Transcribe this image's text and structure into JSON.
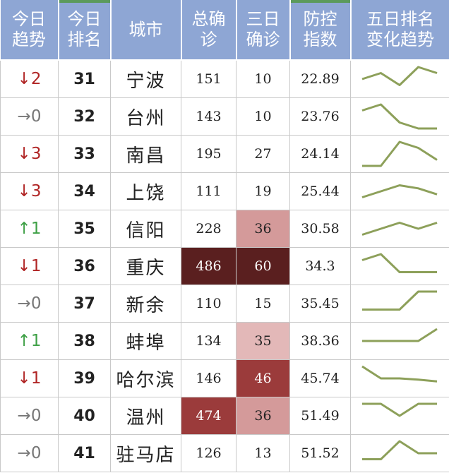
{
  "headers": {
    "trend": [
      "今日",
      "趋势"
    ],
    "rank": [
      "今日",
      "排名"
    ],
    "city": [
      "城市"
    ],
    "total": [
      "总确",
      "诊"
    ],
    "three_day": [
      "三日",
      "确诊"
    ],
    "index": [
      "防控",
      "指数"
    ],
    "sparkline": [
      "五日排名",
      "变化趋势"
    ]
  },
  "colors": {
    "header_bg": "#8ea6d4",
    "trend_down": "#b02525",
    "trend_up": "#3ea046",
    "trend_flat": "#777777",
    "sparkline": "#8da05a"
  },
  "rows": [
    {
      "trend_arrow": "↓",
      "trend_dir": "down",
      "trend_num": "2",
      "rank": "31",
      "city": "宁波",
      "total": "151",
      "three_day": "10",
      "three_day_level": "",
      "total_level": "",
      "index": "22.89",
      "spark": [
        3,
        2,
        4,
        1,
        2
      ]
    },
    {
      "trend_arrow": "→",
      "trend_dir": "flat",
      "trend_num": "0",
      "rank": "32",
      "city": "台州",
      "total": "143",
      "three_day": "10",
      "three_day_level": "",
      "total_level": "",
      "index": "23.76",
      "spark": [
        2,
        1,
        4,
        5,
        5
      ]
    },
    {
      "trend_arrow": "↓",
      "trend_dir": "down",
      "trend_num": "3",
      "rank": "33",
      "city": "南昌",
      "total": "195",
      "three_day": "27",
      "three_day_level": "",
      "total_level": "",
      "index": "24.14",
      "spark": [
        5,
        5,
        1,
        2,
        4
      ]
    },
    {
      "trend_arrow": "↓",
      "trend_dir": "down",
      "trend_num": "3",
      "rank": "34",
      "city": "上饶",
      "total": "111",
      "three_day": "19",
      "three_day_level": "",
      "total_level": "",
      "index": "25.44",
      "spark": [
        4,
        3,
        2,
        2.5,
        3.5
      ]
    },
    {
      "trend_arrow": "↑",
      "trend_dir": "up",
      "trend_num": "1",
      "rank": "35",
      "city": "信阳",
      "total": "228",
      "three_day": "36",
      "three_day_level": "light",
      "total_level": "",
      "index": "30.58",
      "spark": [
        4,
        3,
        2,
        3,
        2
      ]
    },
    {
      "trend_arrow": "↓",
      "trend_dir": "down",
      "trend_num": "1",
      "rank": "36",
      "city": "重庆",
      "total": "486",
      "three_day": "60",
      "three_day_level": "dark",
      "total_level": "dark",
      "index": "34.3",
      "spark": [
        2,
        1,
        4,
        4,
        4
      ]
    },
    {
      "trend_arrow": "→",
      "trend_dir": "flat",
      "trend_num": "0",
      "rank": "37",
      "city": "新余",
      "total": "110",
      "three_day": "15",
      "three_day_level": "",
      "total_level": "",
      "index": "35.45",
      "spark": [
        4,
        4,
        4,
        1,
        1
      ]
    },
    {
      "trend_arrow": "↑",
      "trend_dir": "up",
      "trend_num": "1",
      "rank": "38",
      "city": "蚌埠",
      "total": "134",
      "three_day": "35",
      "three_day_level": "pale",
      "total_level": "",
      "index": "38.36",
      "spark": [
        3,
        3,
        3,
        3,
        1
      ]
    },
    {
      "trend_arrow": "↓",
      "trend_dir": "down",
      "trend_num": "1",
      "rank": "39",
      "city": "哈尔滨",
      "total": "146",
      "three_day": "46",
      "three_day_level": "mid",
      "total_level": "",
      "index": "45.74",
      "spark": [
        1,
        3,
        3,
        3.2,
        3.5
      ]
    },
    {
      "trend_arrow": "→",
      "trend_dir": "flat",
      "trend_num": "0",
      "rank": "40",
      "city": "温州",
      "total": "474",
      "three_day": "36",
      "three_day_level": "light",
      "total_level": "mid",
      "index": "51.49",
      "spark": [
        1,
        1,
        3,
        1,
        1
      ]
    },
    {
      "trend_arrow": "→",
      "trend_dir": "flat",
      "trend_num": "0",
      "rank": "41",
      "city": "驻马店",
      "total": "126",
      "three_day": "13",
      "three_day_level": "",
      "total_level": "",
      "index": "51.52",
      "spark": [
        4,
        4,
        1,
        3,
        3
      ]
    }
  ]
}
